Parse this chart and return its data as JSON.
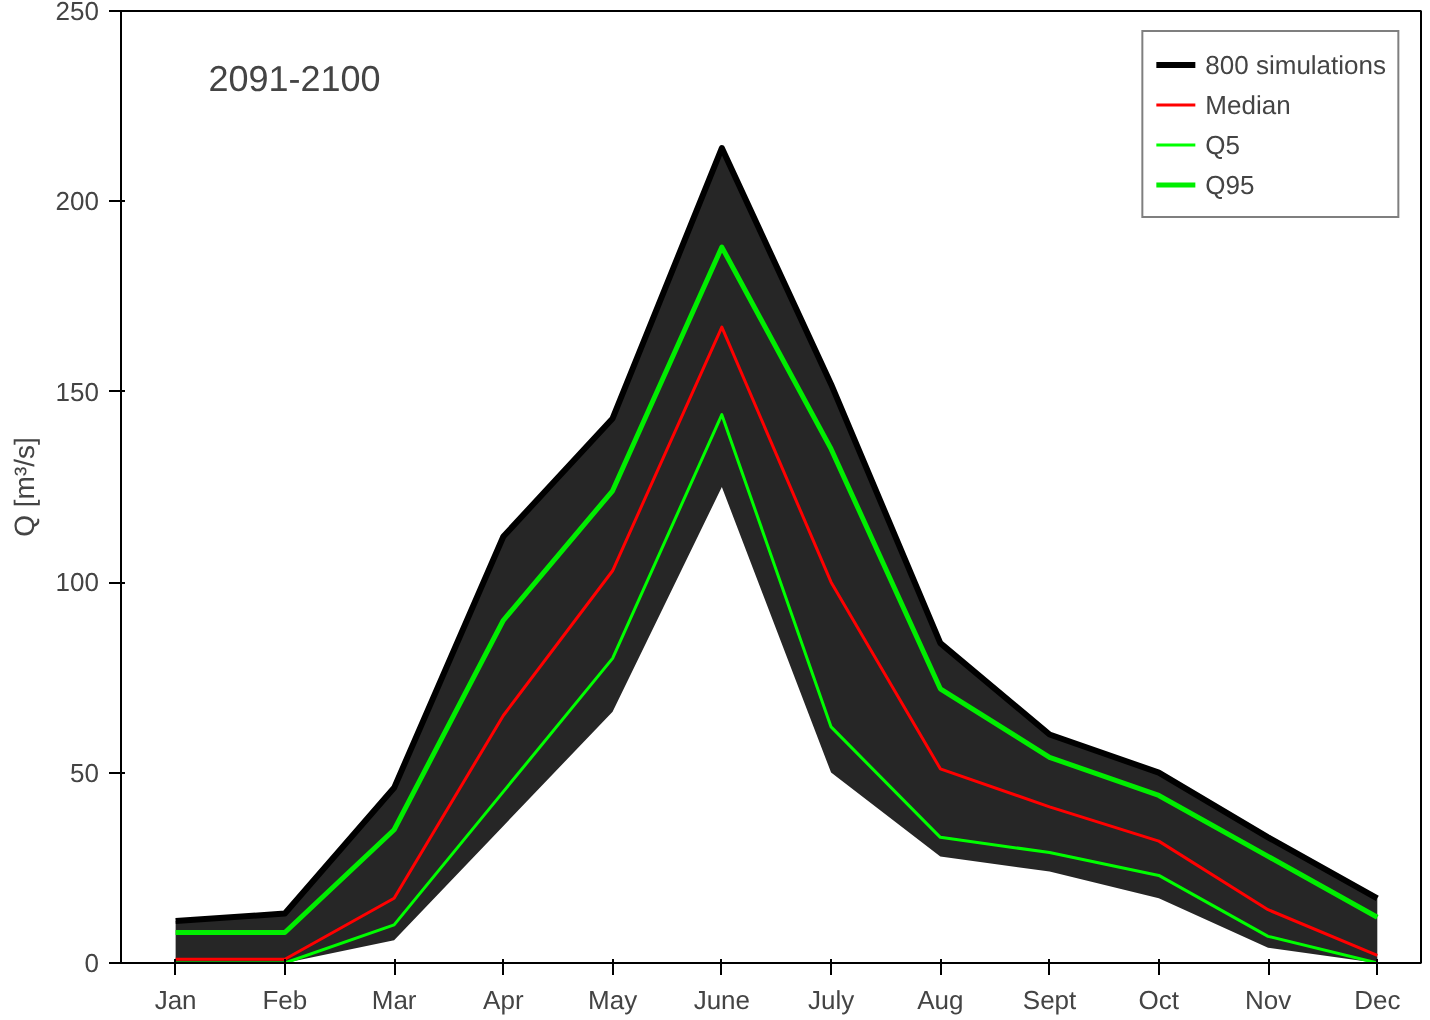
{
  "chart_data": {
    "type": "line",
    "title": "2091-2100",
    "ylabel": "Q [m³/s]",
    "categories": [
      "Jan",
      "Feb",
      "Mar",
      "Apr",
      "May",
      "June",
      "July",
      "Aug",
      "Sept",
      "Oct",
      "Nov",
      "Dec"
    ],
    "ylim": [
      0,
      250
    ],
    "yticks": [
      0,
      50,
      100,
      150,
      200,
      250
    ],
    "grid": false,
    "legend": "top right",
    "marker": "none",
    "line_style": "solid",
    "series": [
      {
        "name": "800 simulations",
        "color": "#000000",
        "values": [
          11,
          13,
          46,
          112,
          143,
          214,
          152,
          84,
          60,
          50,
          33,
          17
        ],
        "lower": [
          0,
          0,
          6,
          36,
          66,
          125,
          50,
          28,
          24,
          17,
          4,
          0
        ],
        "upper": [
          11,
          13,
          46,
          112,
          143,
          214,
          152,
          84,
          60,
          50,
          33,
          17
        ]
      },
      {
        "name": "Median",
        "color": "#ff0000",
        "values": [
          1,
          1,
          17,
          65,
          103,
          167,
          100,
          51,
          41,
          32,
          14,
          2
        ]
      },
      {
        "name": "Q5",
        "color": "#00ff00",
        "values": [
          0,
          0,
          10,
          45,
          80,
          144,
          62,
          33,
          29,
          23,
          7,
          0
        ]
      },
      {
        "name": "Q95",
        "color": "#00ee00",
        "values": [
          8,
          8,
          35,
          90,
          124,
          188,
          135,
          72,
          54,
          44,
          28,
          12
        ]
      }
    ]
  }
}
